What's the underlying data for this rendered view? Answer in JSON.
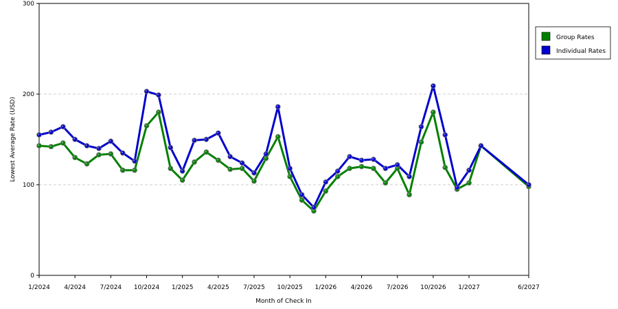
{
  "chart_data": {
    "type": "line",
    "xlabel": "Month of Check In",
    "ylabel": "Lowest Average Rate (USD)",
    "ylim": [
      0,
      300
    ],
    "yticks": [
      0,
      100,
      200,
      300
    ],
    "grid": "horizontal dashed",
    "legend_position": "right",
    "x": [
      "1/2024",
      "2/2024",
      "3/2024",
      "4/2024",
      "5/2024",
      "6/2024",
      "7/2024",
      "8/2024",
      "9/2024",
      "10/2024",
      "11/2024",
      "12/2024",
      "1/2025",
      "2/2025",
      "3/2025",
      "4/2025",
      "5/2025",
      "6/2025",
      "7/2025",
      "8/2025",
      "9/2025",
      "10/2025",
      "11/2025",
      "12/2025",
      "1/2026",
      "2/2026",
      "3/2026",
      "4/2026",
      "5/2026",
      "6/2026",
      "7/2026",
      "8/2026",
      "9/2026",
      "10/2026",
      "11/2026",
      "12/2026",
      "1/2027",
      "2/2027",
      "6/2027"
    ],
    "xtick_labels": [
      "1/2024",
      "4/2024",
      "7/2024",
      "10/2024",
      "1/2025",
      "4/2025",
      "7/2025",
      "10/2025",
      "1/2026",
      "4/2026",
      "7/2026",
      "10/2026",
      "1/2027",
      "6/2027"
    ],
    "series": [
      {
        "name": "Group Rates",
        "color": "#008000",
        "values": [
          143,
          142,
          146,
          130,
          123,
          133,
          134,
          116,
          116,
          165,
          180,
          118,
          105,
          125,
          136,
          127,
          117,
          118,
          104,
          129,
          153,
          109,
          83,
          71,
          93,
          109,
          118,
          120,
          118,
          102,
          118,
          89,
          147,
          180,
          119,
          95,
          102,
          143,
          98
        ]
      },
      {
        "name": "Individual Rates",
        "color": "#0000cc",
        "values": [
          155,
          158,
          164,
          150,
          143,
          140,
          148,
          135,
          126,
          203,
          199,
          141,
          115,
          149,
          150,
          157,
          131,
          124,
          113,
          134,
          186,
          118,
          89,
          75,
          103,
          115,
          131,
          127,
          128,
          118,
          122,
          109,
          164,
          209,
          155,
          97,
          116,
          143,
          100
        ]
      }
    ]
  }
}
